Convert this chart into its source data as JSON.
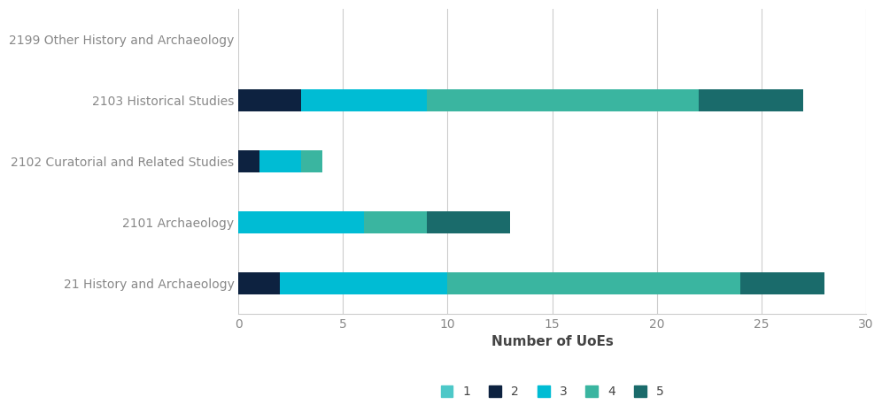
{
  "categories": [
    "21 History and Archaeology",
    "2101 Archaeology",
    "2102 Curatorial and Related Studies",
    "2103 Historical Studies",
    "2199 Other History and Archaeology"
  ],
  "series": {
    "1": [
      0,
      0,
      0,
      0,
      0
    ],
    "2": [
      2,
      0,
      1,
      3,
      0
    ],
    "3": [
      8,
      6,
      2,
      6,
      0
    ],
    "4": [
      14,
      3,
      1,
      13,
      0
    ],
    "5": [
      4,
      4,
      0,
      5,
      0
    ]
  },
  "colors": {
    "1": "#4dc8c8",
    "2": "#0d2240",
    "3": "#00bcd4",
    "4": "#3ab5a0",
    "5": "#1a6b6b"
  },
  "xlabel": "Number of UoEs",
  "xlim": [
    0,
    30
  ],
  "xticks": [
    0,
    5,
    10,
    15,
    20,
    25,
    30
  ],
  "bar_height": 0.35,
  "background_color": "#ffffff",
  "grid_color": "#cccccc",
  "label_color": "#888888",
  "legend_labels": [
    "1",
    "2",
    "3",
    "4",
    "5"
  ],
  "xlabel_fontsize": 11,
  "tick_fontsize": 10,
  "label_fontsize": 10
}
